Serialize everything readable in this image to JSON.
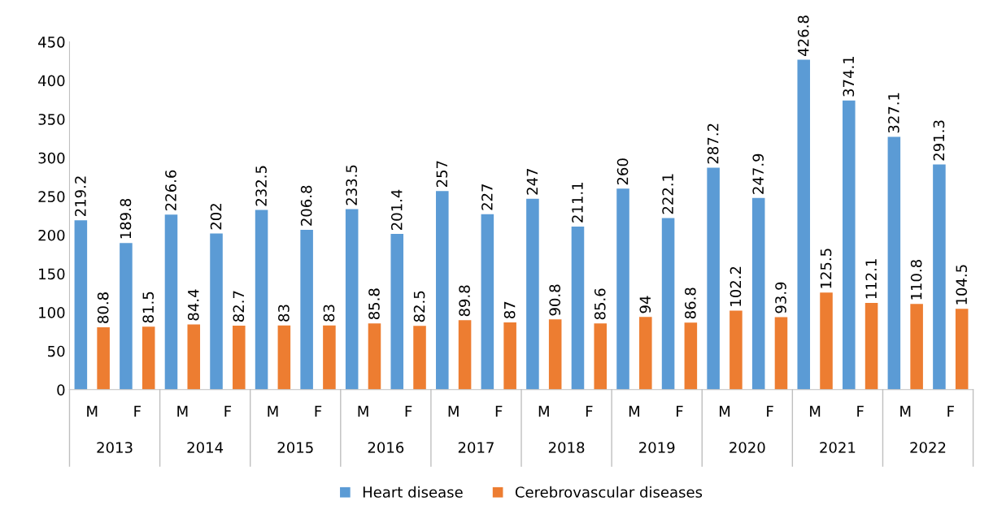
{
  "chart_data": {
    "type": "bar",
    "categories": [
      "M",
      "F",
      "M",
      "F",
      "M",
      "F",
      "M",
      "F",
      "M",
      "F",
      "M",
      "F",
      "M",
      "F",
      "M",
      "F",
      "M",
      "F",
      "M",
      "F"
    ],
    "series": [
      {
        "name": "Heart disease",
        "color": "#5b9bd5",
        "values": [
          219.2,
          189.8,
          226.6,
          202,
          232.5,
          206.8,
          233.5,
          201.4,
          257,
          227,
          247,
          211.1,
          260,
          222.1,
          287.2,
          247.9,
          426.8,
          374.1,
          327.1,
          291.3
        ]
      },
      {
        "name": "Cerebrovascular diseases",
        "color": "#ed7d31",
        "values": [
          80.8,
          81.5,
          84.4,
          82.7,
          83,
          83,
          85.8,
          82.5,
          89.8,
          87,
          90.8,
          85.6,
          94,
          86.8,
          102.2,
          93.9,
          125.5,
          112.1,
          110.8,
          104.5
        ]
      }
    ],
    "annotations": [
      "2013",
      "2014",
      "2015",
      "2016",
      "2017",
      "2018",
      "2019",
      "2020",
      "2021",
      "2022"
    ],
    "ylim": [
      0,
      450
    ],
    "yticks": [
      0,
      50,
      100,
      150,
      200,
      250,
      300,
      350,
      400,
      450
    ],
    "data_labels": true,
    "grid": false,
    "legend": "bottom"
  }
}
